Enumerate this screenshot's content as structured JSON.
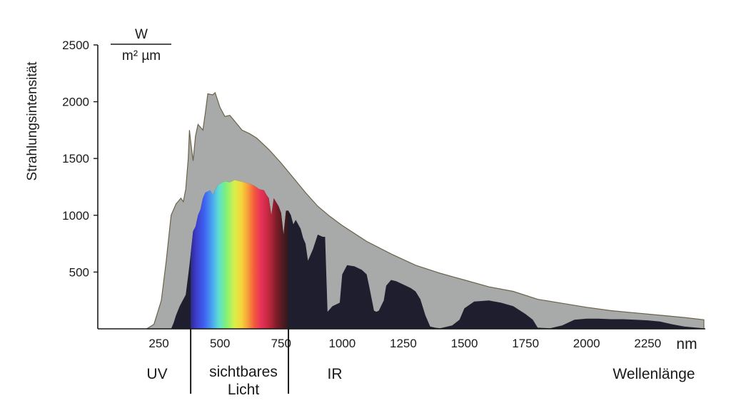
{
  "chart_data": {
    "type": "area",
    "ylabel": "Strahlungsintensität",
    "yunit_numerator": "W",
    "yunit_denominator": "m² µm",
    "xunit": "nm",
    "xlabel": "Wellenlänge",
    "ylim": [
      0,
      2500
    ],
    "xlim": [
      0,
      2500
    ],
    "y_ticks": [
      500,
      1000,
      1500,
      2000,
      2500
    ],
    "x_ticks": [
      250,
      500,
      750,
      1000,
      1250,
      1500,
      1750,
      2000,
      2250
    ],
    "bands": {
      "uv": "UV",
      "visible_line1": "sichtbares",
      "visible_line2": "Licht",
      "ir": "IR"
    },
    "band_boundaries_nm": [
      380,
      780
    ],
    "colors": {
      "extraterrestrial": "#a8aaa9",
      "extraterrestrial_edge": "#6b6248",
      "surface": "#1f1e2e"
    },
    "series": [
      {
        "key": "extraterrestrial",
        "points": [
          [
            200,
            0
          ],
          [
            230,
            40
          ],
          [
            260,
            250
          ],
          [
            280,
            600
          ],
          [
            300,
            1000
          ],
          [
            320,
            1100
          ],
          [
            340,
            1150
          ],
          [
            350,
            1120
          ],
          [
            360,
            1230
          ],
          [
            370,
            1500
          ],
          [
            375,
            1750
          ],
          [
            380,
            1650
          ],
          [
            390,
            1480
          ],
          [
            400,
            1700
          ],
          [
            410,
            1800
          ],
          [
            430,
            1750
          ],
          [
            440,
            1900
          ],
          [
            450,
            2070
          ],
          [
            470,
            2060
          ],
          [
            480,
            2080
          ],
          [
            500,
            1950
          ],
          [
            520,
            1870
          ],
          [
            540,
            1880
          ],
          [
            560,
            1830
          ],
          [
            590,
            1750
          ],
          [
            620,
            1720
          ],
          [
            650,
            1680
          ],
          [
            700,
            1580
          ],
          [
            750,
            1460
          ],
          [
            800,
            1330
          ],
          [
            850,
            1200
          ],
          [
            900,
            1080
          ],
          [
            950,
            990
          ],
          [
            1000,
            910
          ],
          [
            1100,
            770
          ],
          [
            1200,
            660
          ],
          [
            1300,
            560
          ],
          [
            1400,
            490
          ],
          [
            1500,
            430
          ],
          [
            1600,
            370
          ],
          [
            1700,
            330
          ],
          [
            1800,
            260
          ],
          [
            1900,
            225
          ],
          [
            2000,
            190
          ],
          [
            2100,
            160
          ],
          [
            2200,
            140
          ],
          [
            2300,
            120
          ],
          [
            2400,
            100
          ],
          [
            2480,
            80
          ],
          [
            2480,
            0
          ]
        ]
      },
      {
        "key": "surface",
        "points": [
          [
            300,
            0
          ],
          [
            310,
            50
          ],
          [
            320,
            120
          ],
          [
            335,
            200
          ],
          [
            345,
            240
          ],
          [
            360,
            300
          ],
          [
            375,
            560
          ],
          [
            390,
            860
          ],
          [
            400,
            900
          ],
          [
            410,
            1000
          ],
          [
            420,
            1050
          ],
          [
            430,
            1150
          ],
          [
            440,
            1200
          ],
          [
            450,
            1210
          ],
          [
            460,
            1220
          ],
          [
            470,
            1180
          ],
          [
            480,
            1220
          ],
          [
            490,
            1260
          ],
          [
            500,
            1280
          ],
          [
            520,
            1300
          ],
          [
            540,
            1290
          ],
          [
            560,
            1310
          ],
          [
            580,
            1300
          ],
          [
            600,
            1290
          ],
          [
            620,
            1280
          ],
          [
            640,
            1260
          ],
          [
            660,
            1230
          ],
          [
            680,
            1220
          ],
          [
            690,
            1180
          ],
          [
            700,
            1150
          ],
          [
            710,
            1000
          ],
          [
            720,
            1150
          ],
          [
            740,
            1080
          ],
          [
            750,
            1020
          ],
          [
            760,
            830
          ],
          [
            770,
            1040
          ],
          [
            780,
            1040
          ],
          [
            790,
            1000
          ],
          [
            800,
            920
          ],
          [
            810,
            960
          ],
          [
            820,
            920
          ],
          [
            830,
            880
          ],
          [
            840,
            800
          ],
          [
            850,
            750
          ],
          [
            860,
            600
          ],
          [
            880,
            700
          ],
          [
            900,
            830
          ],
          [
            920,
            810
          ],
          [
            930,
            810
          ],
          [
            940,
            150
          ],
          [
            960,
            200
          ],
          [
            990,
            230
          ],
          [
            1000,
            480
          ],
          [
            1020,
            560
          ],
          [
            1050,
            550
          ],
          [
            1080,
            520
          ],
          [
            1100,
            480
          ],
          [
            1110,
            380
          ],
          [
            1130,
            160
          ],
          [
            1140,
            150
          ],
          [
            1150,
            160
          ],
          [
            1170,
            250
          ],
          [
            1180,
            380
          ],
          [
            1200,
            430
          ],
          [
            1220,
            420
          ],
          [
            1240,
            400
          ],
          [
            1260,
            380
          ],
          [
            1280,
            360
          ],
          [
            1300,
            330
          ],
          [
            1320,
            260
          ],
          [
            1340,
            120
          ],
          [
            1360,
            20
          ],
          [
            1380,
            10
          ],
          [
            1400,
            5
          ],
          [
            1450,
            30
          ],
          [
            1480,
            80
          ],
          [
            1500,
            180
          ],
          [
            1540,
            240
          ],
          [
            1600,
            250
          ],
          [
            1650,
            230
          ],
          [
            1700,
            200
          ],
          [
            1750,
            130
          ],
          [
            1780,
            80
          ],
          [
            1800,
            10
          ],
          [
            1850,
            5
          ],
          [
            1900,
            30
          ],
          [
            1950,
            80
          ],
          [
            2000,
            90
          ],
          [
            2050,
            90
          ],
          [
            2100,
            85
          ],
          [
            2150,
            85
          ],
          [
            2200,
            80
          ],
          [
            2250,
            75
          ],
          [
            2300,
            65
          ],
          [
            2350,
            40
          ],
          [
            2400,
            20
          ],
          [
            2450,
            10
          ],
          [
            2480,
            5
          ],
          [
            2480,
            0
          ]
        ]
      }
    ]
  }
}
